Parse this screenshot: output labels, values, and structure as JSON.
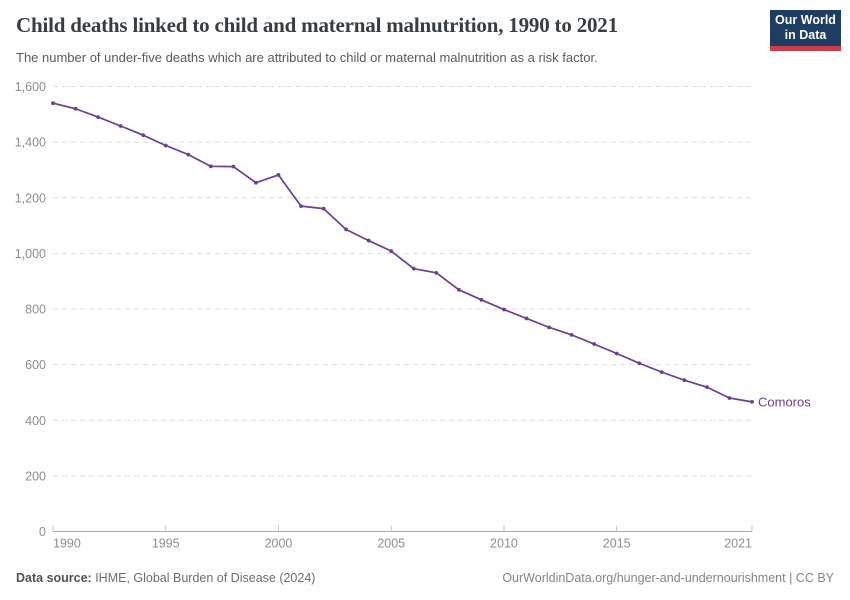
{
  "header": {
    "logo": {
      "line1": "Our World",
      "line2": "in Data",
      "bg_color": "#1d3d63",
      "accent_color": "#cf3c4c"
    }
  },
  "chart_data": {
    "type": "line",
    "title": "Child deaths linked to child and maternal malnutrition, 1990 to 2021",
    "subtitle": "The number of under-five deaths which are attributed to child or maternal malnutrition as a risk factor.",
    "x": [
      1990,
      1991,
      1992,
      1993,
      1994,
      1995,
      1996,
      1997,
      1998,
      1999,
      2000,
      2001,
      2002,
      2003,
      2004,
      2005,
      2006,
      2007,
      2008,
      2009,
      2010,
      2011,
      2012,
      2013,
      2014,
      2015,
      2016,
      2017,
      2018,
      2019,
      2020,
      2021
    ],
    "series": [
      {
        "name": "Comoros",
        "color": "#6d3e91",
        "values": [
          1540,
          1520,
          1490,
          1458,
          1425,
          1388,
          1355,
          1313,
          1312,
          1254,
          1282,
          1170,
          1161,
          1086,
          1046,
          1008,
          945,
          930,
          869,
          833,
          798,
          766,
          734,
          707,
          674,
          640,
          605,
          573,
          544,
          519,
          480,
          466
        ]
      }
    ],
    "xlabel": "",
    "ylabel": "",
    "xlim": [
      1990,
      2021
    ],
    "ylim": [
      0,
      1600
    ],
    "xticks": [
      1990,
      1995,
      2000,
      2005,
      2010,
      2015,
      2021
    ],
    "yticks": [
      0,
      200,
      400,
      600,
      800,
      1000,
      1200,
      1400,
      1600
    ],
    "ytick_labels": [
      "0",
      "200",
      "400",
      "600",
      "800",
      "1,000",
      "1,200",
      "1,400",
      "1,600"
    ],
    "grid": "horizontal-dashed",
    "legend_position": "line-end-label",
    "grid_color": "#dedede",
    "axis_color": "#a8a8a8",
    "tick_color": "#c4c4c4",
    "tick_label_color": "#8e8e8e"
  },
  "footer": {
    "source_label": "Data source:",
    "source_value": " IHME, Global Burden of Disease (2024)",
    "url": "OurWorldinData.org/hunger-and-undernourishment",
    "separator": " | ",
    "license": "CC BY"
  }
}
